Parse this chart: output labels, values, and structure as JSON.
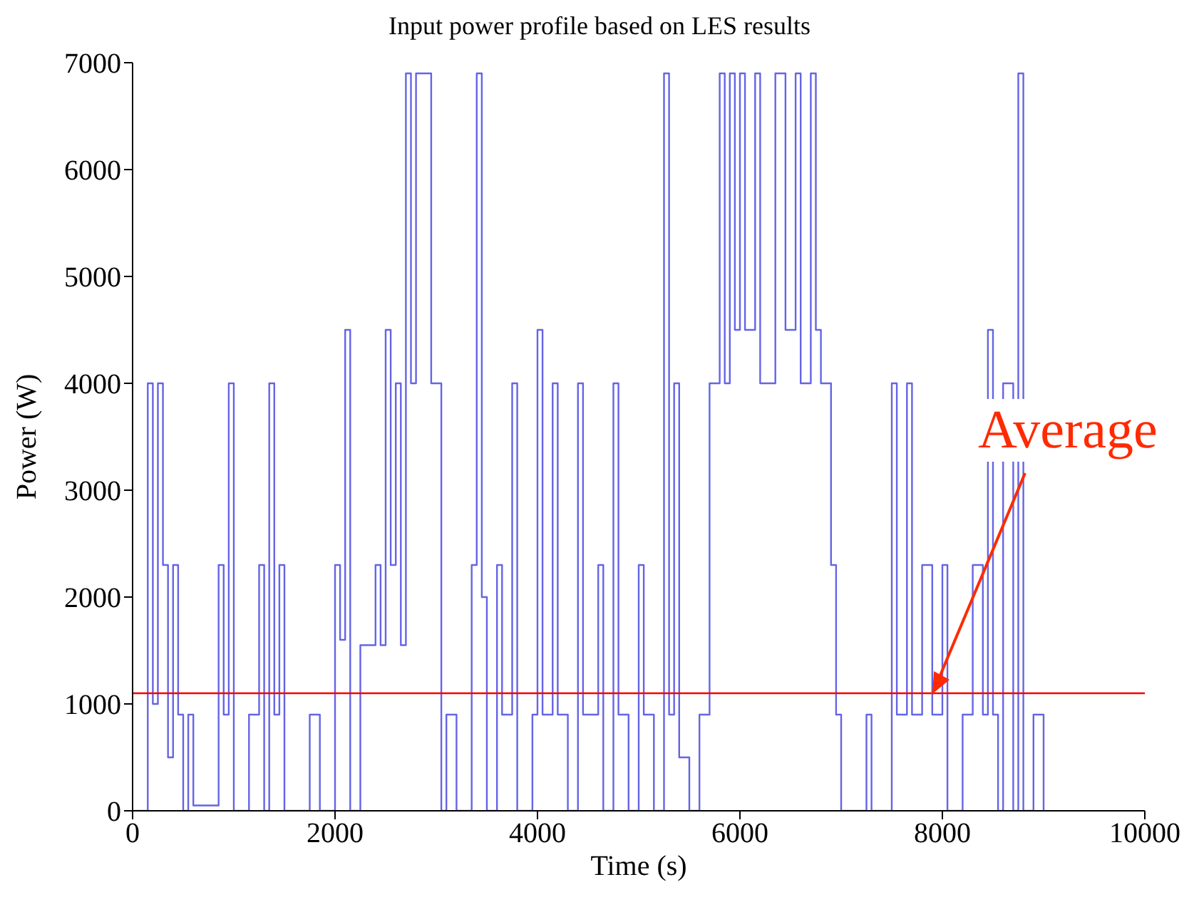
{
  "chart_data": {
    "type": "step",
    "title": "Input power profile based on LES results",
    "xlabel": "Time (s)",
    "ylabel": "Power (W)",
    "x": [
      0,
      150,
      200,
      250,
      300,
      350,
      400,
      450,
      500,
      550,
      600,
      850,
      900,
      950,
      1000,
      1150,
      1250,
      1300,
      1350,
      1400,
      1450,
      1500,
      1750,
      1850,
      2000,
      2050,
      2100,
      2150,
      2250,
      2400,
      2450,
      2500,
      2550,
      2600,
      2650,
      2700,
      2750,
      2800,
      2950,
      3050,
      3100,
      3200,
      3350,
      3400,
      3450,
      3500,
      3600,
      3650,
      3750,
      3800,
      3950,
      4000,
      4050,
      4150,
      4200,
      4300,
      4400,
      4450,
      4600,
      4650,
      4750,
      4800,
      4900,
      5000,
      5050,
      5150,
      5250,
      5300,
      5350,
      5400,
      5500,
      5600,
      5700,
      5800,
      5850,
      5900,
      5950,
      6000,
      6050,
      6150,
      6200,
      6350,
      6450,
      6550,
      6600,
      6700,
      6750,
      6800,
      6900,
      6950,
      7000,
      7250,
      7300,
      7500,
      7550,
      7650,
      7700,
      7800,
      7900,
      8000,
      8050,
      8200,
      8300,
      8400,
      8450,
      8500,
      8550,
      8600,
      8700,
      8750,
      8800,
      8900,
      9000
    ],
    "values": [
      0,
      4000,
      1000,
      4000,
      2300,
      500,
      2300,
      900,
      0,
      900,
      50,
      2300,
      900,
      4000,
      0,
      900,
      2300,
      0,
      4000,
      900,
      2300,
      0,
      900,
      0,
      2300,
      1600,
      4500,
      0,
      1550,
      2300,
      1550,
      4500,
      2300,
      4000,
      1550,
      6900,
      4000,
      6900,
      4000,
      0,
      900,
      0,
      2300,
      6900,
      2000,
      0,
      2300,
      900,
      4000,
      0,
      900,
      4500,
      900,
      4000,
      900,
      0,
      4000,
      900,
      2300,
      0,
      4000,
      900,
      0,
      2300,
      900,
      0,
      6900,
      900,
      4000,
      500,
      0,
      900,
      4000,
      6900,
      4000,
      6900,
      4500,
      6900,
      4500,
      6900,
      4000,
      6900,
      4500,
      6900,
      4000,
      6900,
      4500,
      4000,
      2300,
      900,
      0,
      900,
      0,
      4000,
      900,
      4000,
      900,
      2300,
      900,
      2300,
      0,
      900,
      2300,
      900,
      4500,
      900,
      0,
      4000,
      0,
      6900,
      0,
      900,
      0
    ],
    "color": "#6464e6",
    "xlim": [
      0,
      10000
    ],
    "xticks": [
      0,
      2000,
      4000,
      6000,
      8000,
      10000
    ],
    "ylim": [
      0,
      7000
    ],
    "yticks": [
      0,
      1000,
      2000,
      3000,
      4000,
      5000,
      6000,
      7000
    ],
    "ref_lines": [
      {
        "axis": "y",
        "value": 1100,
        "color": "#ff0000"
      }
    ],
    "annotations": [
      {
        "text": "Average",
        "x": 7900,
        "y": 1100
      }
    ]
  }
}
